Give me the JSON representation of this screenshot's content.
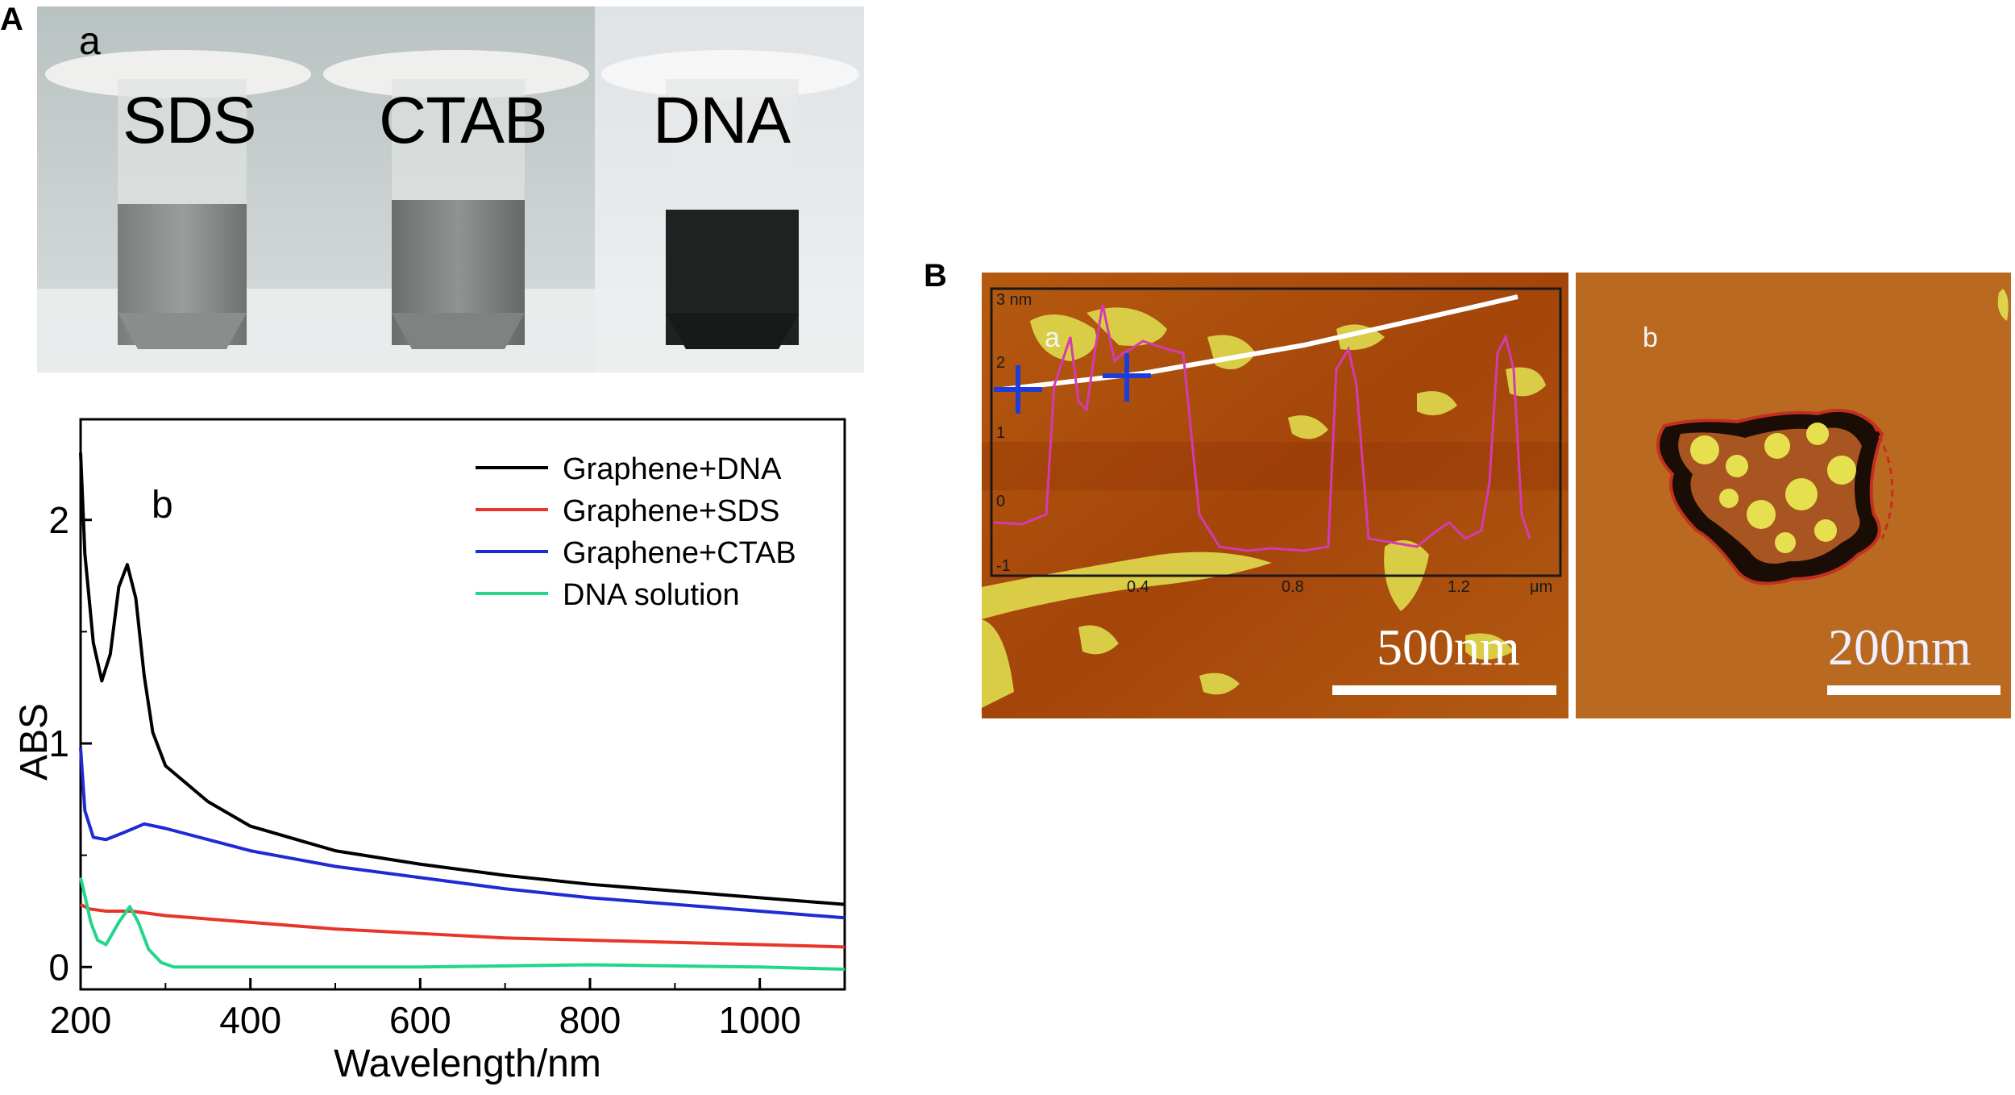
{
  "panel_A": {
    "letter": "A",
    "photo": {
      "sublabel": "a",
      "tubes": [
        "SDS",
        "CTAB",
        "DNA"
      ]
    },
    "chart_data": {
      "type": "line",
      "sublabel": "b",
      "xlabel": "Wavelength/nm",
      "ylabel": "ABS",
      "xlim": [
        200,
        1100
      ],
      "ylim": [
        -0.1,
        2.45
      ],
      "xticks": [
        200,
        400,
        600,
        800,
        1000
      ],
      "yticks": [
        0,
        1,
        2
      ],
      "legend_position": "top-right",
      "series": [
        {
          "name": "Graphene+DNA",
          "color": "#000000",
          "x": [
            200,
            205,
            215,
            225,
            235,
            245,
            255,
            265,
            275,
            285,
            300,
            350,
            400,
            500,
            600,
            700,
            800,
            900,
            1000,
            1100
          ],
          "y": [
            2.3,
            1.85,
            1.45,
            1.28,
            1.4,
            1.7,
            1.8,
            1.65,
            1.3,
            1.05,
            0.9,
            0.74,
            0.63,
            0.52,
            0.46,
            0.41,
            0.37,
            0.34,
            0.31,
            0.28
          ]
        },
        {
          "name": "Graphene+SDS",
          "color": "#e8352a",
          "x": [
            200,
            210,
            230,
            260,
            280,
            300,
            400,
            500,
            600,
            700,
            800,
            900,
            1000,
            1100
          ],
          "y": [
            0.28,
            0.26,
            0.25,
            0.25,
            0.24,
            0.23,
            0.2,
            0.17,
            0.15,
            0.13,
            0.12,
            0.11,
            0.1,
            0.09
          ]
        },
        {
          "name": "Graphene+CTAB",
          "color": "#1e2bd4",
          "x": [
            200,
            205,
            215,
            230,
            250,
            275,
            300,
            350,
            400,
            500,
            600,
            700,
            800,
            900,
            1000,
            1100
          ],
          "y": [
            0.98,
            0.7,
            0.58,
            0.57,
            0.6,
            0.64,
            0.62,
            0.57,
            0.52,
            0.45,
            0.4,
            0.35,
            0.31,
            0.28,
            0.25,
            0.22
          ]
        },
        {
          "name": "DNA solution",
          "color": "#22d68a",
          "x": [
            200,
            205,
            212,
            220,
            230,
            245,
            258,
            268,
            280,
            295,
            310,
            400,
            600,
            800,
            1000,
            1100
          ],
          "y": [
            0.4,
            0.32,
            0.2,
            0.12,
            0.1,
            0.2,
            0.27,
            0.2,
            0.08,
            0.02,
            0.0,
            0.0,
            0.0,
            0.01,
            0.0,
            -0.01
          ]
        }
      ]
    }
  },
  "panel_B": {
    "letter": "B",
    "afm_a": {
      "sublabel": "a",
      "scale_bar": "500nm",
      "profile_y_ticks": [
        "3 nm",
        "2",
        "1",
        "0",
        "-1"
      ],
      "profile_x_ticks": [
        "0.4",
        "0.8",
        "1.2",
        "μm"
      ]
    },
    "afm_b": {
      "sublabel": "b",
      "scale_bar": "200nm"
    }
  }
}
